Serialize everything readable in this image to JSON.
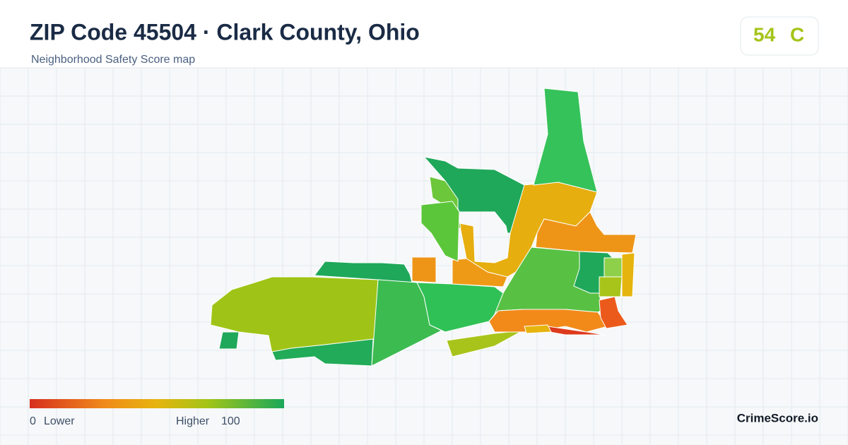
{
  "header": {
    "title": "ZIP Code 45504 · Clark County, Ohio",
    "subtitle": "Neighborhood Safety Score map"
  },
  "badge": {
    "score": "54",
    "grade": "C"
  },
  "legend": {
    "min": "0",
    "min_label": "Lower",
    "max_label": "Higher",
    "max": "100"
  },
  "brand": "CrimeScore.io"
}
